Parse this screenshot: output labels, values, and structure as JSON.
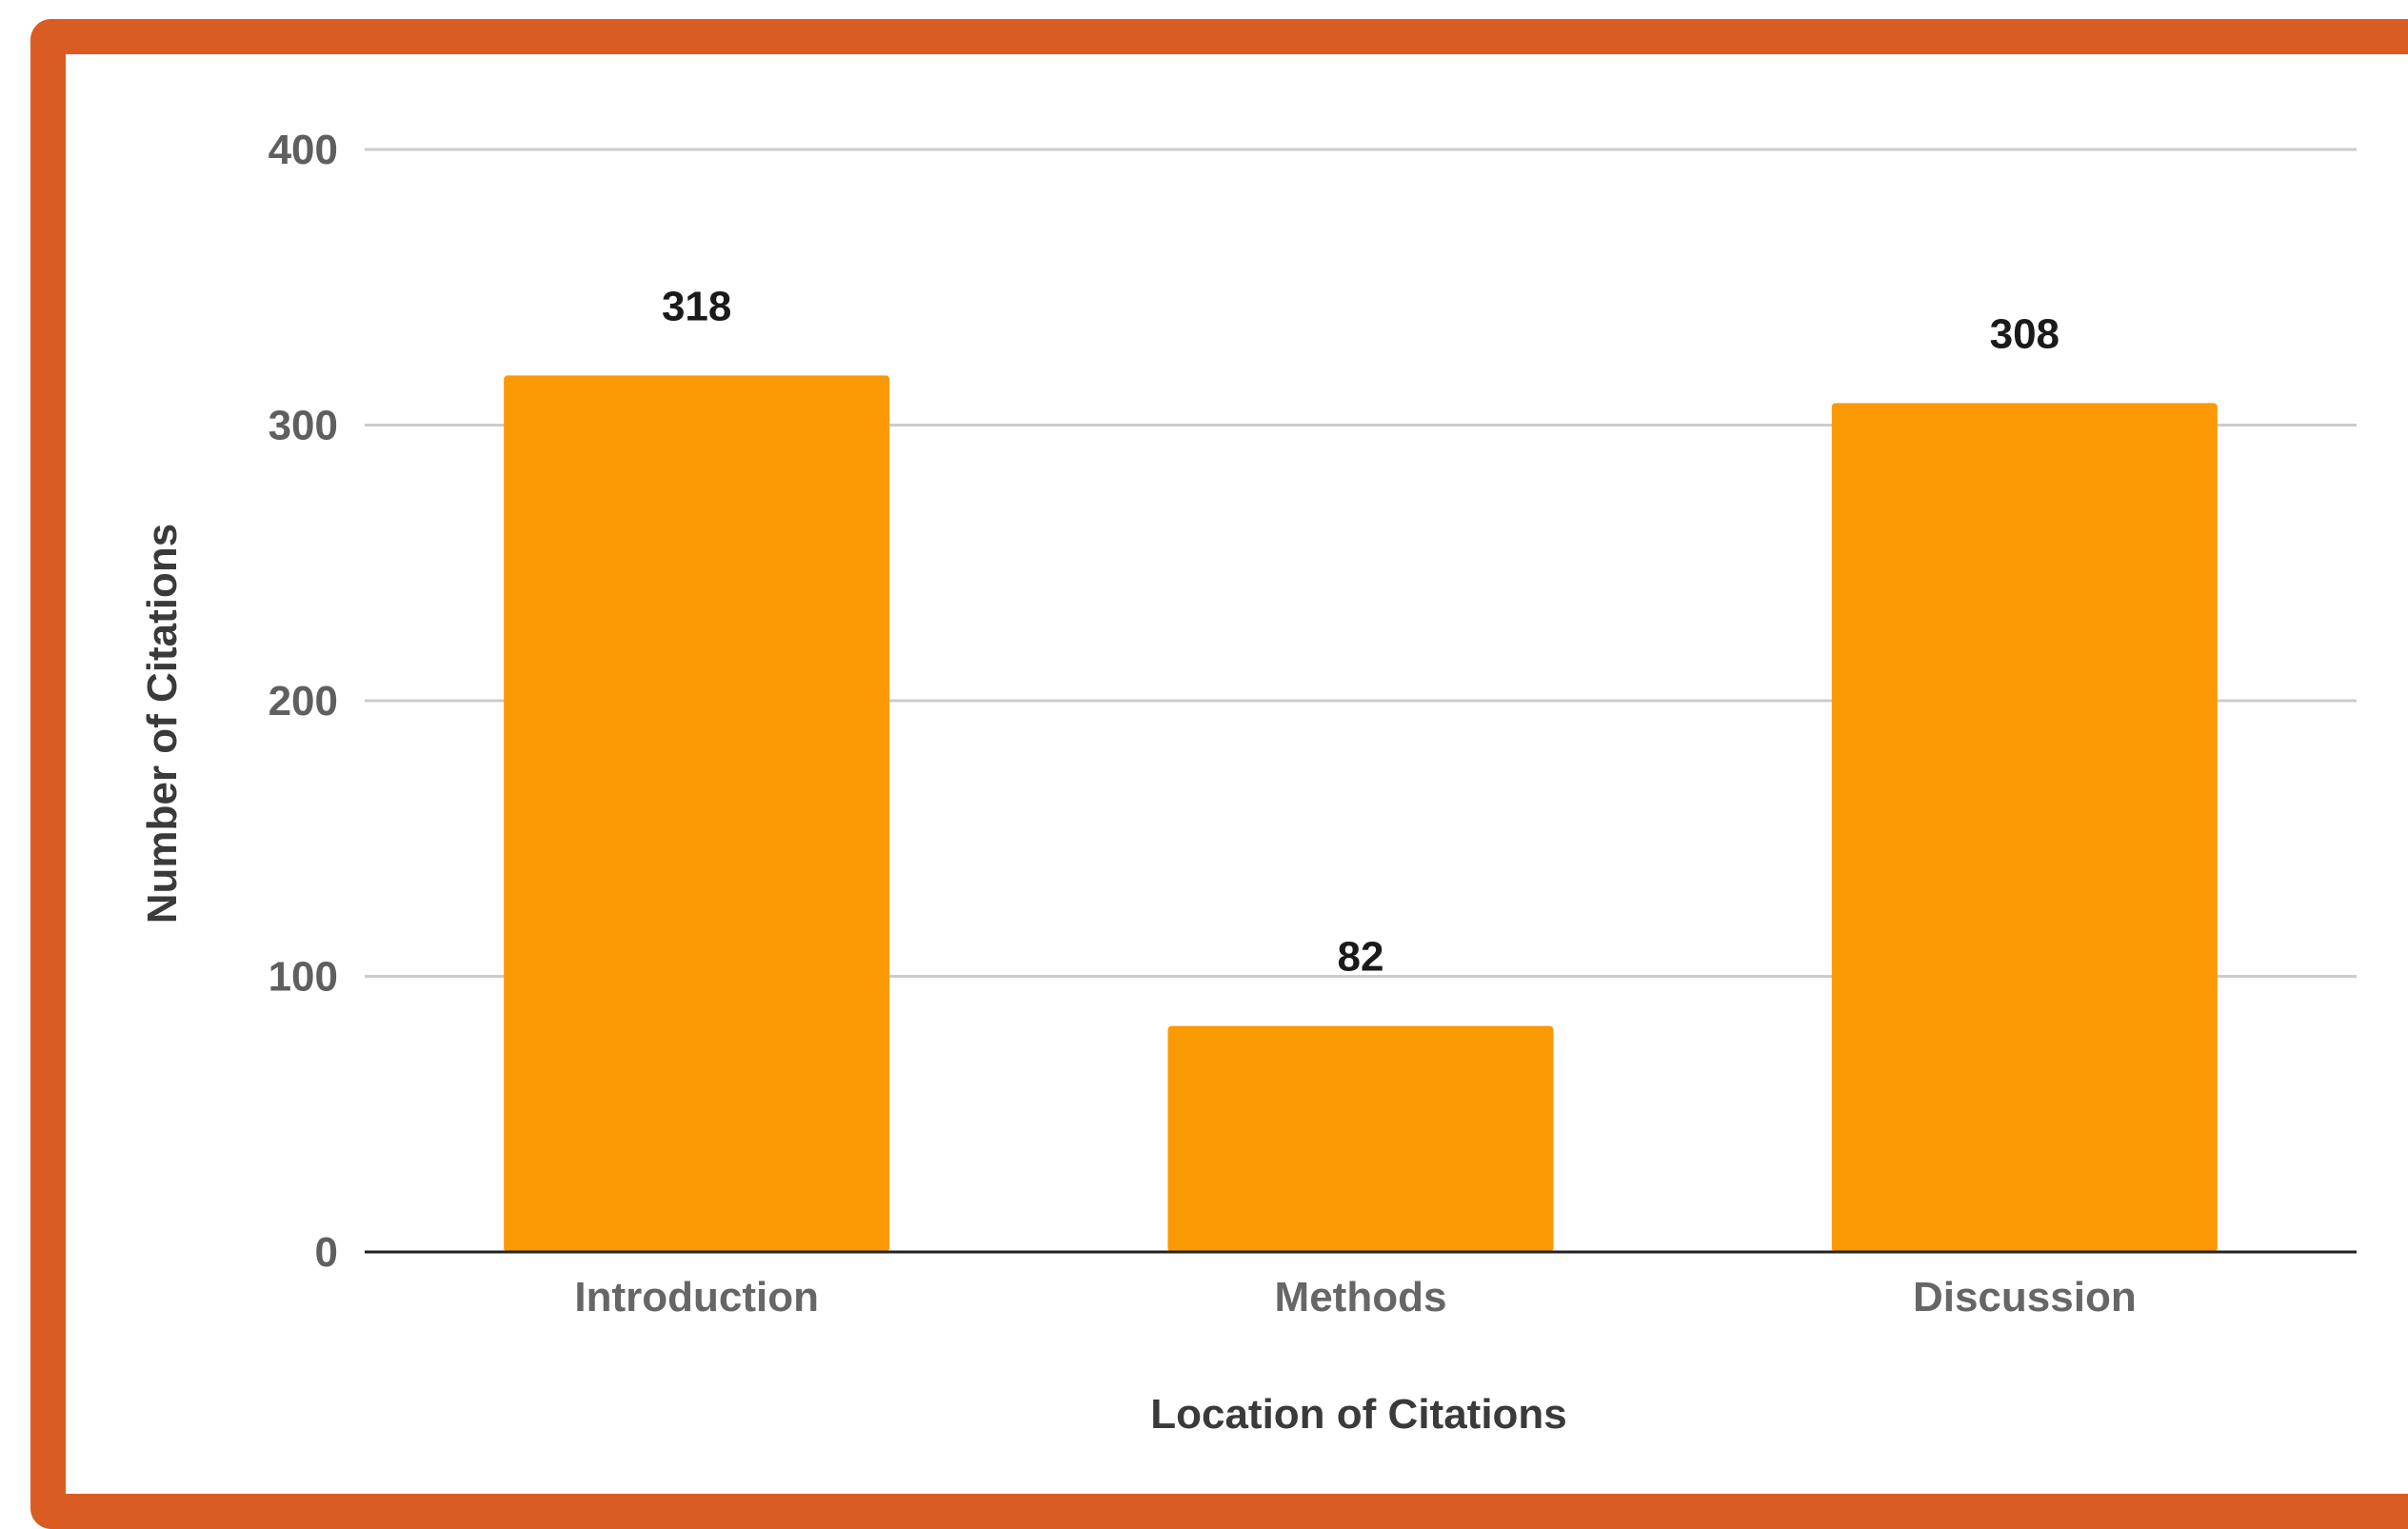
{
  "chart_data": {
    "type": "bar",
    "categories": [
      "Introduction",
      "Methods",
      "Discussion"
    ],
    "values": [
      318,
      82,
      308
    ],
    "data_labels": [
      "318",
      "82",
      "308"
    ],
    "xlabel": "Location of Citations",
    "ylabel": "Number of Citations",
    "ylim": [
      0,
      400
    ],
    "yticks": [
      0,
      100,
      200,
      300,
      400
    ],
    "grid": true,
    "legend": "none",
    "colors": {
      "bar": "#FA9904",
      "frame": "#DB5C22",
      "grid": "#cccccc",
      "axis": "#222222"
    }
  }
}
